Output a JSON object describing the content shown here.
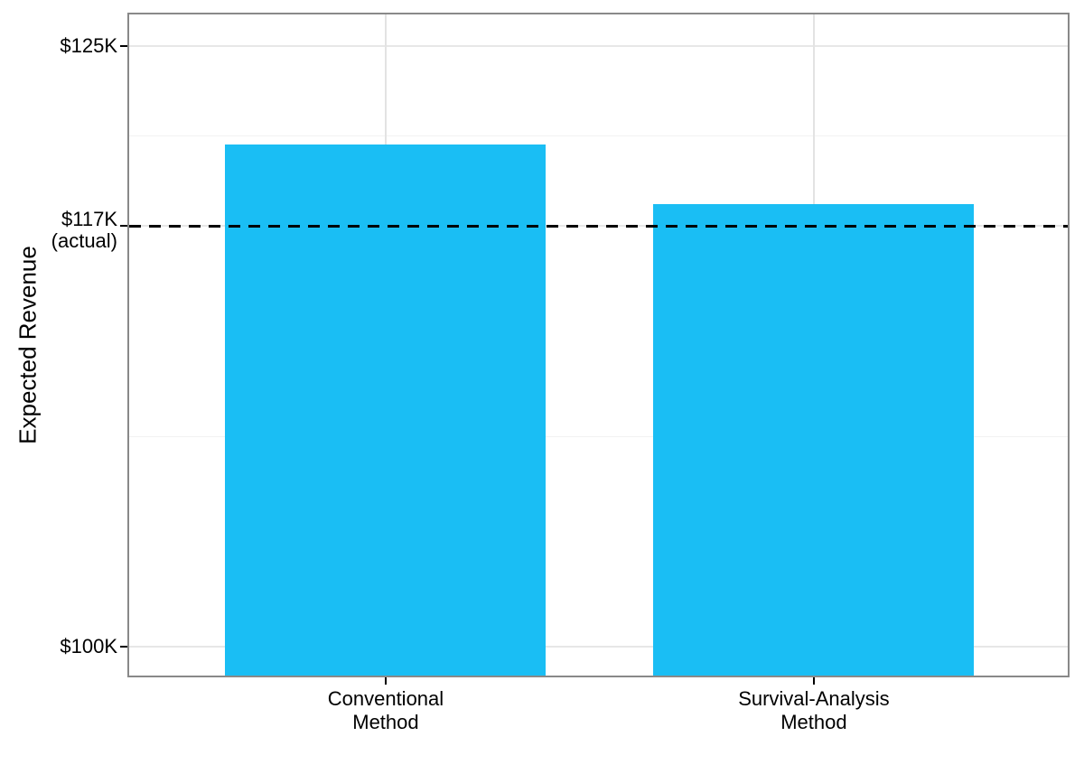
{
  "chart_data": {
    "type": "bar",
    "ylabel": "Expected Revenue",
    "xlabel": "",
    "categories": [
      "Conventional Method",
      "Survival-Analysis Method"
    ],
    "category_label_lines": [
      [
        "Conventional",
        "Method"
      ],
      [
        "Survival-Analysis",
        "Method"
      ]
    ],
    "values": [
      120.9,
      118.4
    ],
    "value_unit": "thousand USD",
    "ylim": [
      98.8,
      126.3
    ],
    "y_ticks": [
      {
        "value": 100,
        "lines": [
          "$100K"
        ]
      },
      {
        "value": 117.5,
        "lines": [
          "$117K",
          "(actual)"
        ]
      },
      {
        "value": 125,
        "lines": [
          "$125K"
        ]
      }
    ],
    "y_minor_gridlines": [
      108.75,
      121.25
    ],
    "reference_line": {
      "value": 117.5,
      "style": "dashed",
      "color": "#000000",
      "label": "$117K (actual)"
    },
    "grid": true,
    "legend": "none",
    "colors": {
      "bar": "#1abef4",
      "reference_line": "#000000",
      "panel_border": "#898989",
      "grid_major": "#e7e7e7",
      "grid_minor": "#f2f2f2",
      "background": "#ffffff",
      "text": "#000000"
    }
  }
}
